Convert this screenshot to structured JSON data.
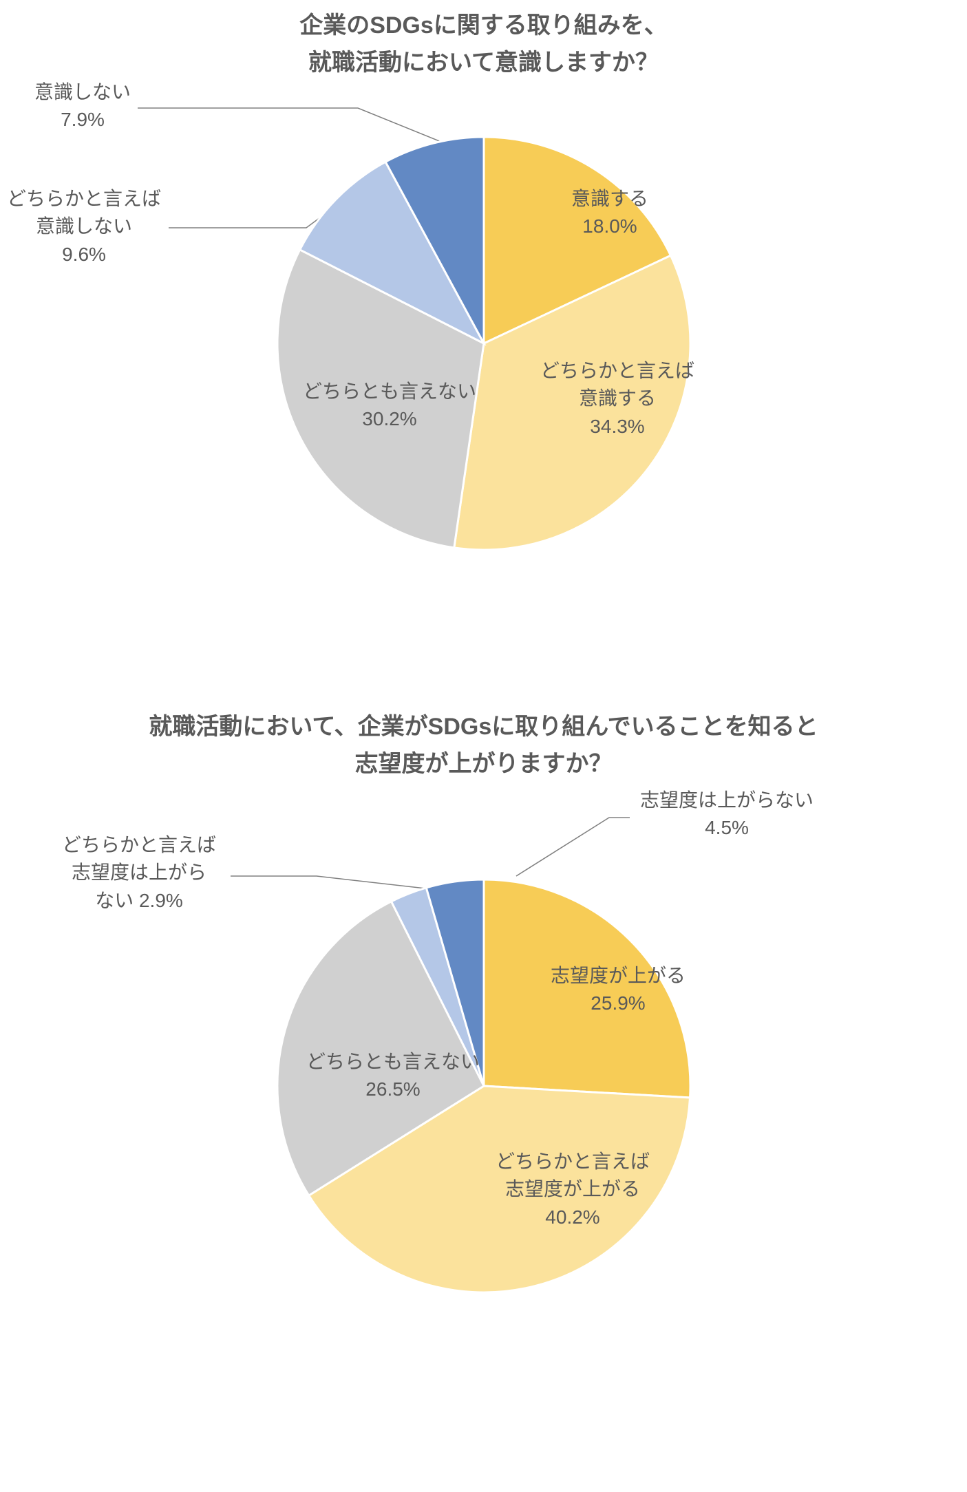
{
  "charts": [
    {
      "type": "pie",
      "title_lines": [
        "企業のSDGsに関する取り組みを、",
        "就職活動において意識しますか？"
      ],
      "title_color": "#595959",
      "title_fontsize": 34,
      "title_fontweight": "bold",
      "label_fontsize": 28,
      "label_color": "#595959",
      "background_color": "#ffffff",
      "pie_radius": 300,
      "stroke_color": "#ffffff",
      "stroke_width": 3,
      "leader_color": "#808080",
      "start_angle_deg": 0,
      "direction": "clockwise",
      "slices": [
        {
          "label_lines": [
            "意識する",
            "18.0%"
          ],
          "value": 18.0,
          "color": "#f7cc56",
          "label_placement": "inside"
        },
        {
          "label_lines": [
            "どちらかと言えば",
            "意識する",
            "34.3%"
          ],
          "value": 34.3,
          "color": "#fbe29c",
          "label_placement": "inside"
        },
        {
          "label_lines": [
            "どちらとも言えない",
            "30.2%"
          ],
          "value": 30.2,
          "color": "#d0d0d0",
          "label_placement": "inside"
        },
        {
          "label_lines": [
            "どちらかと言えば",
            "意識しない",
            "9.6%"
          ],
          "value": 9.6,
          "color": "#b4c7e7",
          "label_placement": "outside"
        },
        {
          "label_lines": [
            "意識しない",
            "7.9%"
          ],
          "value": 7.9,
          "color": "#6289c4",
          "label_placement": "outside"
        }
      ]
    },
    {
      "type": "pie",
      "title_lines": [
        "就職活動において、企業がSDGsに取り組んでいることを知ると",
        "志望度が上がりますか？"
      ],
      "title_color": "#595959",
      "title_fontsize": 34,
      "title_fontweight": "bold",
      "label_fontsize": 28,
      "label_color": "#595959",
      "background_color": "#ffffff",
      "pie_radius": 300,
      "stroke_color": "#ffffff",
      "stroke_width": 3,
      "leader_color": "#808080",
      "start_angle_deg": 0,
      "direction": "clockwise",
      "slices": [
        {
          "label_lines": [
            "志望度が上がる",
            "25.9%"
          ],
          "value": 25.9,
          "color": "#f7cc56",
          "label_placement": "inside"
        },
        {
          "label_lines": [
            "どちらかと言えば",
            "志望度が上がる",
            "40.2%"
          ],
          "value": 40.2,
          "color": "#fbe29c",
          "label_placement": "inside"
        },
        {
          "label_lines": [
            "どちらとも言えない",
            "26.5%"
          ],
          "value": 26.5,
          "color": "#d0d0d0",
          "label_placement": "inside"
        },
        {
          "label_lines": [
            "どちらかと言えば",
            "志望度は上がら",
            "ない 2.9%"
          ],
          "value": 2.9,
          "color": "#b4c7e7",
          "label_placement": "outside"
        },
        {
          "label_lines": [
            "志望度は上がらない",
            "4.5%"
          ],
          "value": 4.5,
          "color": "#6289c4",
          "label_placement": "outside"
        }
      ]
    }
  ]
}
